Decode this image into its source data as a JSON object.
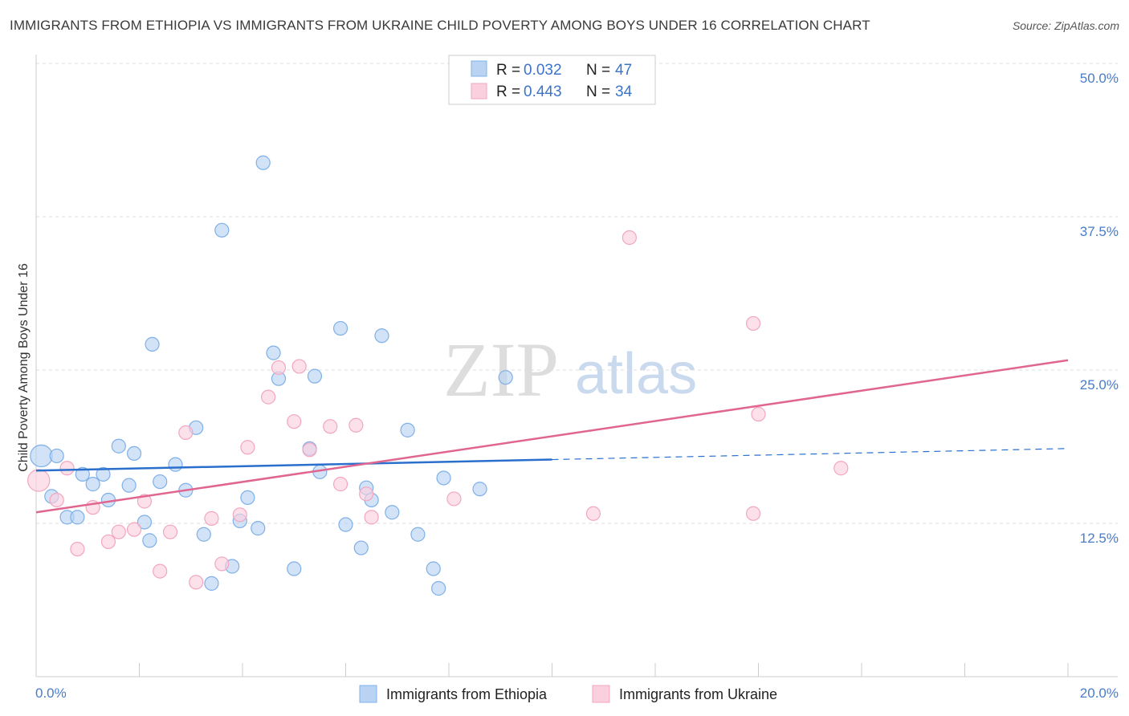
{
  "title": "IMMIGRANTS FROM ETHIOPIA VS IMMIGRANTS FROM UKRAINE CHILD POVERTY AMONG BOYS UNDER 16 CORRELATION CHART",
  "source": "Source: ZipAtlas.com",
  "watermark": {
    "zip": "ZIP",
    "atlas": "atlas"
  },
  "colors": {
    "ethiopia": "#7fb0e8",
    "ukraine": "#f2a6bf",
    "ethiopia_line": "#2b6fcc",
    "ukraine_line": "#e0668f",
    "tick": "#4a7cc8"
  },
  "legend": {
    "rows": [
      {
        "r_label": "R = ",
        "r_value": "0.032",
        "n_label": "N = ",
        "n_value": "47"
      },
      {
        "r_label": "R = ",
        "r_value": "0.443",
        "n_label": "N = ",
        "n_value": "34"
      }
    ]
  },
  "chart_data": {
    "type": "scatter",
    "title": "IMMIGRANTS FROM ETHIOPIA VS IMMIGRANTS FROM UKRAINE CHILD POVERTY AMONG BOYS UNDER 16 CORRELATION CHART",
    "xlabel": "",
    "ylabel": "Child Poverty Among Boys Under 16",
    "xlim": [
      0,
      20
    ],
    "ylim": [
      0,
      50
    ],
    "x_tick_labels": [
      "0.0%",
      "20.0%"
    ],
    "y_ticks": [
      12.5,
      25.0,
      37.5,
      50.0
    ],
    "y_tick_labels": [
      "12.5%",
      "25.0%",
      "37.5%",
      "50.0%"
    ],
    "grid": true,
    "legend_position": "top-center",
    "series": [
      {
        "name": "Immigrants from Ethiopia",
        "r": 0.032,
        "n": 47,
        "trend": {
          "x0": 0,
          "y0": 16.8,
          "x1": 10,
          "y1": 17.7,
          "dashed_to_x": 20,
          "dashed_to_y": 18.6
        },
        "points": [
          [
            0.1,
            18.0,
            1.6
          ],
          [
            0.4,
            18.0,
            1
          ],
          [
            0.3,
            14.7,
            1
          ],
          [
            0.6,
            13.0,
            1
          ],
          [
            0.8,
            13.0,
            1
          ],
          [
            0.9,
            16.5,
            1
          ],
          [
            1.1,
            15.7,
            1
          ],
          [
            1.3,
            16.5,
            1
          ],
          [
            1.4,
            14.4,
            1
          ],
          [
            1.6,
            18.8,
            1
          ],
          [
            1.8,
            15.6,
            1
          ],
          [
            1.9,
            18.2,
            1
          ],
          [
            2.1,
            12.6,
            1
          ],
          [
            2.2,
            11.1,
            1
          ],
          [
            2.25,
            27.1,
            1
          ],
          [
            2.4,
            15.9,
            1
          ],
          [
            2.7,
            17.3,
            1
          ],
          [
            2.9,
            15.2,
            1
          ],
          [
            3.1,
            20.3,
            1
          ],
          [
            3.25,
            11.6,
            1
          ],
          [
            3.4,
            7.6,
            1
          ],
          [
            3.6,
            36.4,
            1
          ],
          [
            3.8,
            9.0,
            1
          ],
          [
            3.95,
            12.7,
            1
          ],
          [
            4.1,
            14.6,
            1
          ],
          [
            4.3,
            12.1,
            1
          ],
          [
            4.4,
            41.9,
            1
          ],
          [
            4.6,
            26.4,
            1
          ],
          [
            4.7,
            24.3,
            1
          ],
          [
            5.0,
            8.8,
            1
          ],
          [
            5.3,
            18.6,
            1
          ],
          [
            5.4,
            24.5,
            1
          ],
          [
            5.5,
            16.7,
            1
          ],
          [
            5.9,
            28.4,
            1
          ],
          [
            6.0,
            12.4,
            1
          ],
          [
            6.3,
            10.5,
            1
          ],
          [
            6.4,
            15.4,
            1
          ],
          [
            6.5,
            14.4,
            1
          ],
          [
            6.7,
            27.8,
            1
          ],
          [
            6.9,
            13.4,
            1
          ],
          [
            7.2,
            20.1,
            1
          ],
          [
            7.4,
            11.6,
            1
          ],
          [
            7.7,
            8.8,
            1
          ],
          [
            7.8,
            7.2,
            1
          ],
          [
            7.9,
            16.2,
            1
          ],
          [
            8.6,
            15.3,
            1
          ],
          [
            9.1,
            24.4,
            1
          ]
        ]
      },
      {
        "name": "Immigrants from Ukraine",
        "r": 0.443,
        "n": 34,
        "trend": {
          "x0": 0,
          "y0": 13.4,
          "x1": 20,
          "y1": 25.8
        },
        "points": [
          [
            0.05,
            16.0,
            1.6
          ],
          [
            0.4,
            14.4,
            1
          ],
          [
            0.6,
            17.0,
            1
          ],
          [
            0.8,
            10.4,
            1
          ],
          [
            1.1,
            13.8,
            1
          ],
          [
            1.4,
            11.0,
            1
          ],
          [
            1.6,
            11.8,
            1
          ],
          [
            1.9,
            12.0,
            1
          ],
          [
            2.1,
            14.3,
            1
          ],
          [
            2.4,
            8.6,
            1
          ],
          [
            2.6,
            11.8,
            1
          ],
          [
            2.9,
            19.9,
            1
          ],
          [
            3.1,
            7.7,
            1
          ],
          [
            3.4,
            12.9,
            1
          ],
          [
            3.6,
            9.2,
            1
          ],
          [
            3.95,
            13.2,
            1
          ],
          [
            4.1,
            18.7,
            1
          ],
          [
            4.5,
            22.8,
            1
          ],
          [
            4.7,
            25.2,
            1
          ],
          [
            5.0,
            20.8,
            1
          ],
          [
            5.1,
            25.3,
            1
          ],
          [
            5.3,
            18.5,
            1
          ],
          [
            5.7,
            20.4,
            1
          ],
          [
            5.9,
            15.7,
            1
          ],
          [
            6.2,
            20.5,
            1
          ],
          [
            6.4,
            14.9,
            1
          ],
          [
            6.5,
            13.0,
            1
          ],
          [
            8.1,
            14.5,
            1
          ],
          [
            10.8,
            13.3,
            1
          ],
          [
            11.5,
            35.8,
            1
          ],
          [
            13.9,
            28.8,
            1
          ],
          [
            13.9,
            13.3,
            1
          ],
          [
            14.0,
            21.4,
            1
          ],
          [
            15.6,
            17.0,
            1
          ]
        ]
      }
    ]
  }
}
